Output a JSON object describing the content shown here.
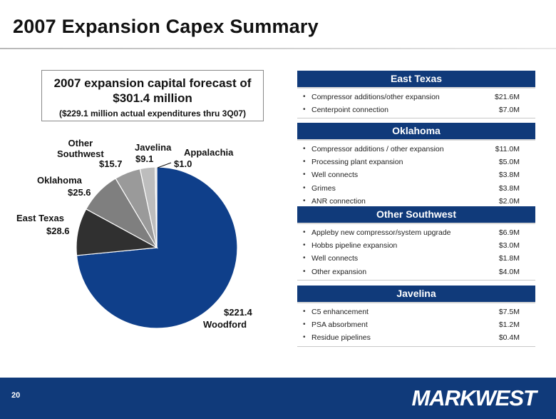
{
  "page": {
    "title": "2007 Expansion Capex Summary",
    "page_number": "20",
    "logo": "MARKWEST"
  },
  "summary": {
    "line1": "2007 expansion capital forecast of",
    "line2": "$301.4 million",
    "line3": "($229.1 million actual expenditures thru 3Q07)"
  },
  "colors": {
    "header_blue": "#103a7a",
    "woodford": "#0f3f8a",
    "east_texas": "#303030",
    "oklahoma": "#7f7f7f",
    "other_southwest": "#9a9a9a",
    "javelina": "#bdbdbd",
    "appalachia": "#d9d9d9"
  },
  "chart_data": {
    "type": "pie",
    "title": "",
    "slices": [
      {
        "label": "Woodford",
        "value": 221.4,
        "value_label": "$221.4",
        "color": "#0f3f8a"
      },
      {
        "label": "East Texas",
        "value": 28.6,
        "value_label": "$28.6",
        "color": "#303030"
      },
      {
        "label": "Oklahoma",
        "value": 25.6,
        "value_label": "$25.6",
        "color": "#7f7f7f"
      },
      {
        "label": "Other Southwest",
        "value": 15.7,
        "value_label": "$15.7",
        "color": "#9a9a9a"
      },
      {
        "label": "Javelina",
        "value": 9.1,
        "value_label": "$9.1",
        "color": "#bdbdbd"
      },
      {
        "label": "Appalachia",
        "value": 1.0,
        "value_label": "$1.0",
        "color": "#d9d9d9"
      }
    ],
    "label_text": {
      "other_southwest_line1": "Other",
      "other_southwest_line2": "Southwest"
    }
  },
  "panels": [
    {
      "header": "East Texas",
      "rows": [
        {
          "item": "Compressor additions/other expansion",
          "amount": "$21.6M"
        },
        {
          "item": "Centerpoint connection",
          "amount": "$7.0M"
        }
      ]
    },
    {
      "header": "Oklahoma",
      "rows": [
        {
          "item": "Compressor additions / other expansion",
          "amount": "$11.0M"
        },
        {
          "item": "Processing plant expansion",
          "amount": "$5.0M"
        },
        {
          "item": "Well connects",
          "amount": "$3.8M"
        },
        {
          "item": "Grimes",
          "amount": "$3.8M"
        },
        {
          "item": "ANR connection",
          "amount": "$2.0M"
        }
      ]
    },
    {
      "header": "Other Southwest",
      "rows": [
        {
          "item": "Appleby new compressor/system upgrade",
          "amount": "$6.9M"
        },
        {
          "item": "Hobbs pipeline expansion",
          "amount": "$3.0M"
        },
        {
          "item": "Well connects",
          "amount": "$1.8M"
        },
        {
          "item": "Other expansion",
          "amount": "$4.0M"
        }
      ]
    },
    {
      "header": "Javelina",
      "rows": [
        {
          "item": "C5 enhancement",
          "amount": "$7.5M"
        },
        {
          "item": "PSA absorbment",
          "amount": "$1.2M"
        },
        {
          "item": "Residue pipelines",
          "amount": "$0.4M"
        }
      ]
    }
  ]
}
